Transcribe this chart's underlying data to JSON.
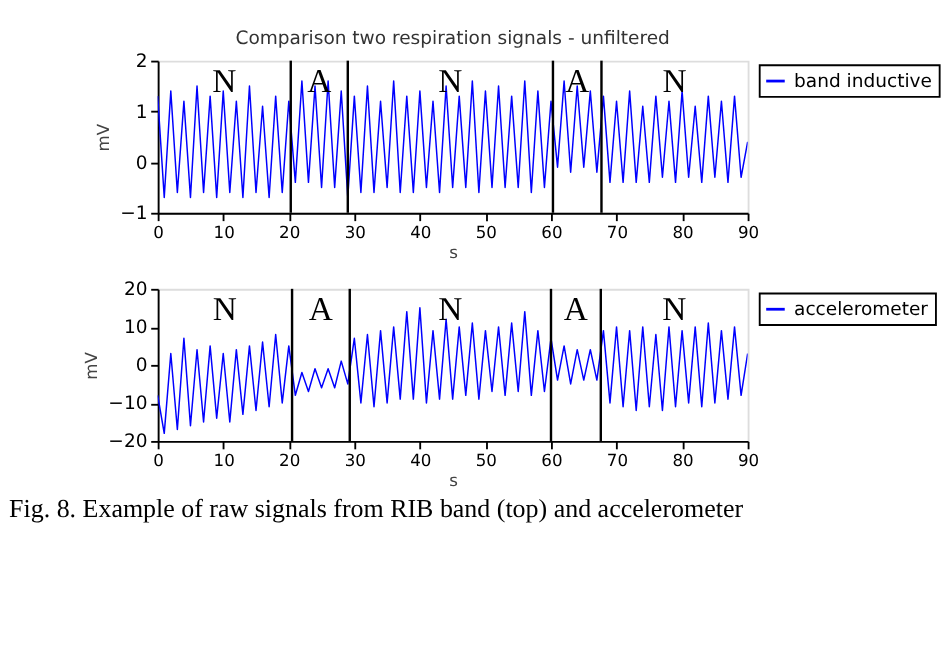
{
  "chart_data": [
    {
      "type": "line",
      "title": "Comparison two respiration signals - unfiltered",
      "xlabel": "s",
      "ylabel": "mV",
      "x": [
        0,
        1,
        2,
        3,
        4,
        5,
        6,
        7,
        8,
        9,
        10,
        11,
        12,
        13,
        14,
        15,
        16,
        17,
        18,
        19,
        20,
        21,
        22,
        23,
        24,
        25,
        26,
        27,
        28,
        29,
        30,
        31,
        32,
        33,
        34,
        35,
        36,
        37,
        38,
        39,
        40,
        41,
        42,
        43,
        44,
        45,
        46,
        47,
        48,
        49,
        50,
        51,
        52,
        53,
        54,
        55,
        56,
        57,
        58,
        59,
        60,
        61,
        62,
        63,
        64,
        65,
        66,
        67,
        68,
        69,
        70,
        71,
        72,
        73,
        74,
        75,
        76,
        77,
        78,
        79,
        80,
        81,
        82,
        83,
        84,
        85,
        86,
        87,
        88,
        89,
        90
      ],
      "series": [
        {
          "name": "band inductive",
          "color": "#0000ff",
          "values": [
            1.3,
            -0.7,
            1.4,
            -0.6,
            1.2,
            -0.7,
            1.5,
            -0.6,
            1.3,
            -0.7,
            1.4,
            -0.6,
            1.2,
            -0.7,
            1.5,
            -0.6,
            1.1,
            -0.7,
            1.3,
            -0.6,
            1.2,
            -0.4,
            1.6,
            -0.4,
            1.5,
            -0.5,
            1.6,
            -0.5,
            1.4,
            -0.7,
            1.3,
            -0.6,
            1.5,
            -0.6,
            1.2,
            -0.5,
            1.6,
            -0.6,
            1.3,
            -0.6,
            1.4,
            -0.5,
            1.2,
            -0.6,
            1.5,
            -0.5,
            1.3,
            -0.5,
            1.6,
            -0.6,
            1.4,
            -0.5,
            1.5,
            -0.5,
            1.3,
            -0.5,
            1.6,
            -0.6,
            1.4,
            -0.5,
            1.2,
            -0.1,
            1.6,
            -0.2,
            1.5,
            -0.1,
            1.4,
            -0.2,
            1.3,
            -0.4,
            1.2,
            -0.4,
            1.4,
            -0.4,
            1.1,
            -0.4,
            1.3,
            -0.3,
            1.2,
            -0.4,
            1.4,
            -0.3,
            1.1,
            -0.4,
            1.3,
            -0.3,
            1.2,
            -0.4,
            1.3,
            -0.3,
            0.4
          ]
        }
      ],
      "xlim": [
        0,
        90
      ],
      "xticks": [
        0,
        10,
        20,
        30,
        40,
        50,
        60,
        70,
        80,
        90
      ],
      "ylim": [
        -1,
        2
      ],
      "yticks": [
        -1,
        0,
        1,
        2
      ],
      "grid": false,
      "legend": "top right",
      "ref_lines": [
        {
          "axis": "x",
          "value": 20.3,
          "color": "#000000"
        },
        {
          "axis": "x",
          "value": 29,
          "color": "#000000"
        },
        {
          "axis": "x",
          "value": 60.3,
          "color": "#000000"
        },
        {
          "axis": "x",
          "value": 67.7,
          "color": "#000000"
        }
      ],
      "annotations": [
        "N",
        "A",
        "N",
        "A",
        "N"
      ]
    },
    {
      "type": "line",
      "xlabel": "s",
      "ylabel": "mV",
      "x": [
        0,
        1,
        2,
        3,
        4,
        5,
        6,
        7,
        8,
        9,
        10,
        11,
        12,
        13,
        14,
        15,
        16,
        17,
        18,
        19,
        20,
        21,
        22,
        23,
        24,
        25,
        26,
        27,
        28,
        29,
        30,
        31,
        32,
        33,
        34,
        35,
        36,
        37,
        38,
        39,
        40,
        41,
        42,
        43,
        44,
        45,
        46,
        47,
        48,
        49,
        50,
        51,
        52,
        53,
        54,
        55,
        56,
        57,
        58,
        59,
        60,
        61,
        62,
        63,
        64,
        65,
        66,
        67,
        68,
        69,
        70,
        71,
        72,
        73,
        74,
        75,
        76,
        77,
        78,
        79,
        80,
        81,
        82,
        83,
        84,
        85,
        86,
        87,
        88,
        89,
        90
      ],
      "series": [
        {
          "name": "accelerometer",
          "color": "#0000ff",
          "values": [
            -8,
            -18,
            3,
            -17,
            7,
            -16,
            4,
            -15,
            5,
            -14,
            3,
            -15,
            4,
            -13,
            5,
            -12,
            6,
            -11,
            8,
            -10,
            5,
            -8,
            -2,
            -7,
            -1,
            -6,
            -1,
            -6,
            1,
            -5,
            7,
            -10,
            8,
            -11,
            9,
            -10,
            10,
            -9,
            14,
            -9,
            15,
            -10,
            9,
            -9,
            12,
            -9,
            10,
            -8,
            11,
            -9,
            9,
            -7,
            10,
            -8,
            11,
            -7,
            14,
            -8,
            9,
            -7,
            7,
            -4,
            5,
            -5,
            4,
            -4,
            4,
            -4,
            9,
            -10,
            10,
            -11,
            9,
            -12,
            10,
            -11,
            8,
            -12,
            10,
            -11,
            9,
            -10,
            10,
            -11,
            11,
            -10,
            9,
            -9,
            10,
            -8,
            3
          ]
        }
      ],
      "xlim": [
        0,
        90
      ],
      "xticks": [
        0,
        10,
        20,
        30,
        40,
        50,
        60,
        70,
        80,
        90
      ],
      "ylim": [
        -20,
        20
      ],
      "yticks": [
        -20,
        -10,
        0,
        10,
        20
      ],
      "grid": false,
      "legend": "top right",
      "ref_lines": [
        {
          "axis": "x",
          "value": 20.5,
          "color": "#000000"
        },
        {
          "axis": "x",
          "value": 29.3,
          "color": "#000000"
        },
        {
          "axis": "x",
          "value": 60,
          "color": "#000000"
        },
        {
          "axis": "x",
          "value": 67.6,
          "color": "#000000"
        }
      ],
      "annotations": [
        "N",
        "A",
        "N",
        "A",
        "N",
        "Fig. 8. Example of raw signals from RIB band (top) and accelerometer"
      ]
    }
  ]
}
